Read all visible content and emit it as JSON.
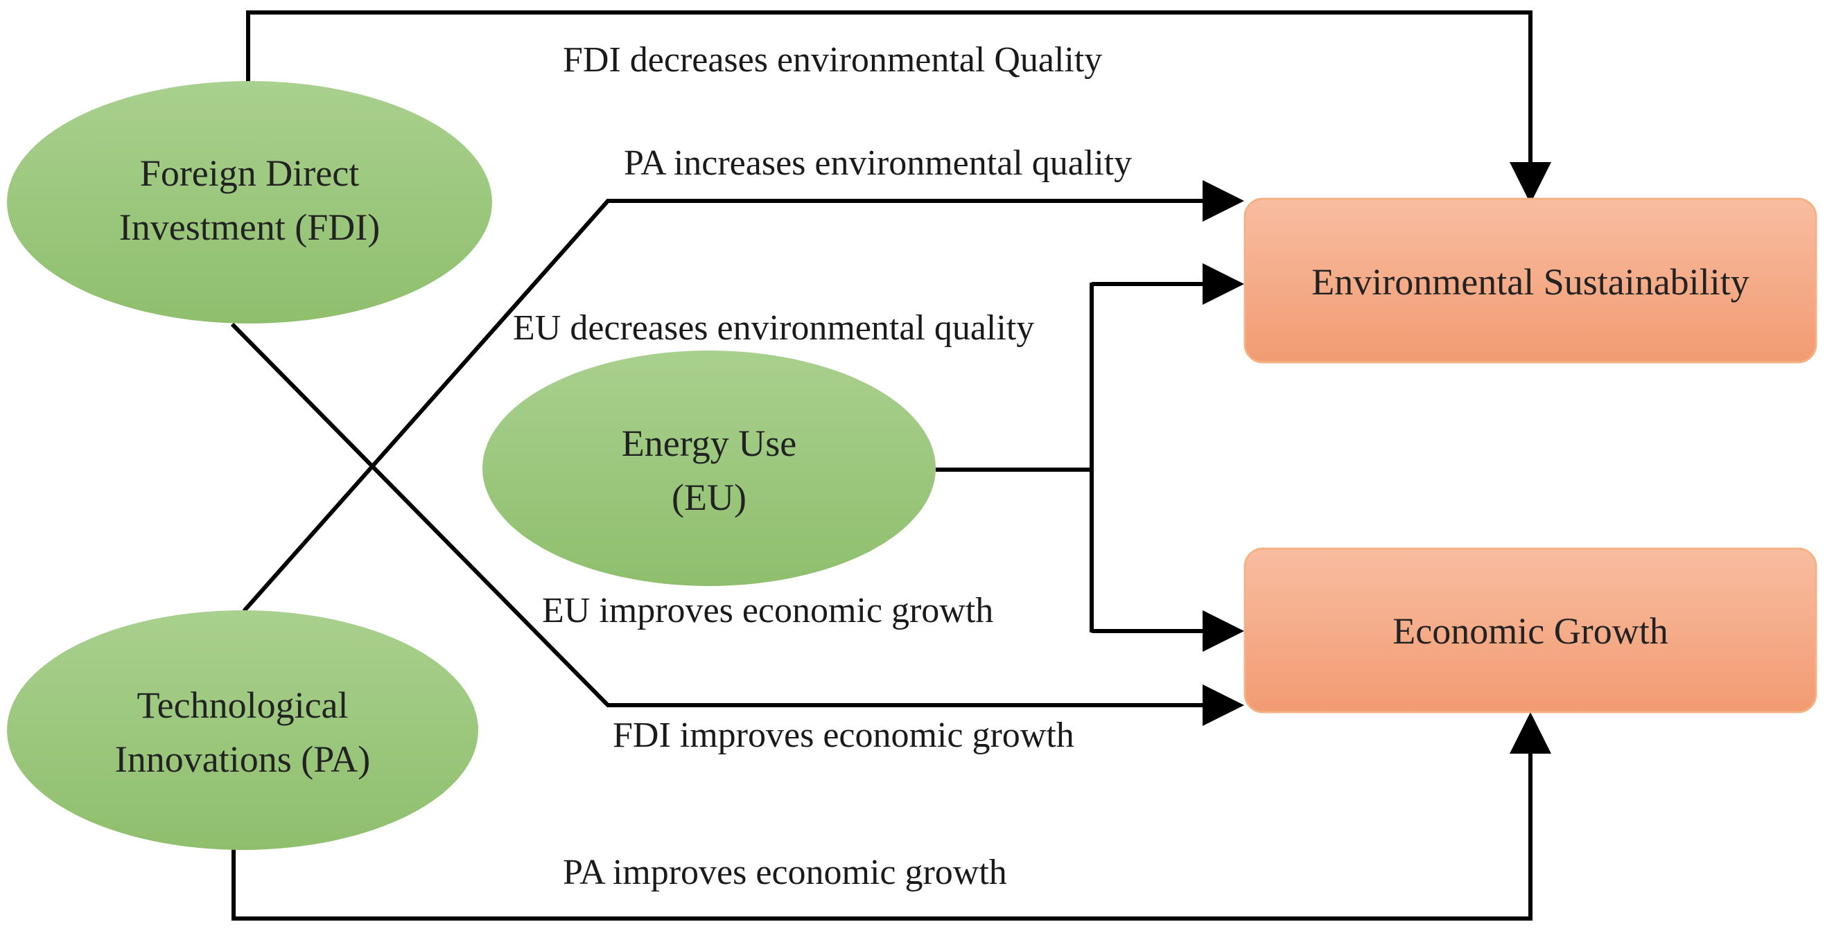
{
  "colors": {
    "ellipse_fill_top": "#a9d08e",
    "ellipse_fill_bottom": "#8fbf6d",
    "box_fill_top": "#f8bda0",
    "box_fill_bottom": "#f29b72",
    "box_stroke": "#f4b183",
    "line": "#000000"
  },
  "nodes": {
    "fdi": {
      "line1": "Foreign Direct",
      "line2": "Investment (FDI)"
    },
    "eu": {
      "line1": "Energy Use",
      "line2": "(EU)"
    },
    "pa": {
      "line1": "Technological",
      "line2": "Innovations (PA)"
    },
    "env": {
      "label": "Environmental Sustainability"
    },
    "growth": {
      "label": "Economic Growth"
    }
  },
  "edges": {
    "fdi_env": "FDI decreases environmental Quality",
    "pa_env": "PA increases environmental quality",
    "eu_env": "EU decreases environmental quality",
    "eu_growth": "EU improves economic growth",
    "fdi_growth": "FDI improves economic growth",
    "pa_growth": "PA improves economic growth"
  }
}
